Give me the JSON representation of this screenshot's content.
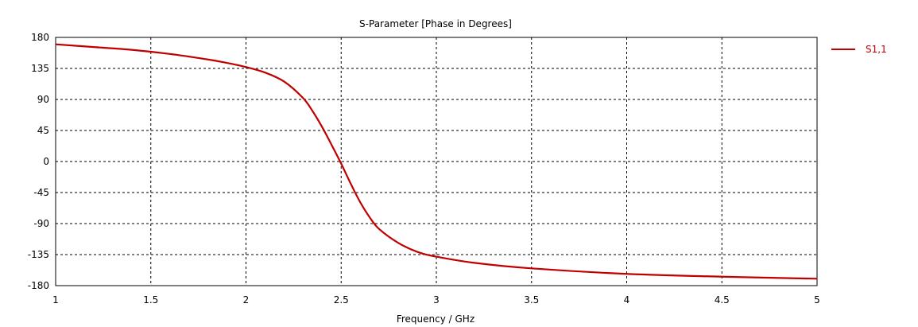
{
  "chart_data": {
    "type": "line",
    "title": "S-Parameter [Phase in Degrees]",
    "xlabel": "Frequency / GHz",
    "ylabel": "",
    "xlim": [
      1,
      5
    ],
    "ylim": [
      -180,
      180
    ],
    "x_ticks": [
      "1",
      "1.5",
      "2",
      "2.5",
      "3",
      "3.5",
      "4",
      "4.5",
      "5"
    ],
    "y_ticks": [
      "180",
      "135",
      "90",
      "45",
      "0",
      "-45",
      "-90",
      "-135",
      "-180"
    ],
    "grid": true,
    "legend_position": "top-right",
    "series": [
      {
        "name": "S1,1",
        "color": "#c00000",
        "x": [
          1.0,
          1.2,
          1.4,
          1.6,
          1.8,
          1.9,
          2.0,
          2.1,
          2.2,
          2.3,
          2.35,
          2.4,
          2.45,
          2.5,
          2.55,
          2.6,
          2.65,
          2.7,
          2.8,
          2.9,
          3.0,
          3.2,
          3.5,
          4.0,
          4.5,
          5.0
        ],
        "y": [
          170,
          166,
          162,
          156,
          148,
          143,
          137,
          129,
          116,
          92,
          73,
          50,
          24,
          -3,
          -32,
          -59,
          -81,
          -98,
          -118,
          -131,
          -138,
          -147,
          -155,
          -163,
          -167,
          -170
        ]
      }
    ]
  }
}
